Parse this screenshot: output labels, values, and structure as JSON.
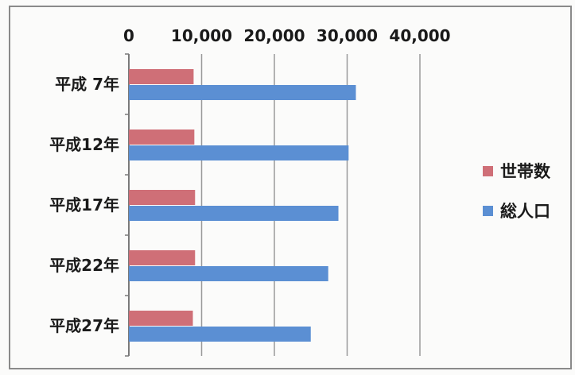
{
  "chart_data": {
    "type": "bar",
    "orientation": "horizontal",
    "categories": [
      "平成 7年",
      "平成12年",
      "平成17年",
      "平成22年",
      "平成27年"
    ],
    "series": [
      {
        "name": "世帯数",
        "values": [
          8900,
          9000,
          9100,
          9100,
          8800
        ],
        "color": "#cf6f77"
      },
      {
        "name": "総人口",
        "values": [
          31200,
          30200,
          28800,
          27400,
          25000
        ],
        "color": "#5b8fd3"
      }
    ],
    "x_ticks": [
      "0",
      "10,000",
      "20,000",
      "30,000",
      "40,000"
    ],
    "xlim": [
      0,
      40000
    ],
    "x_axis_position": "top",
    "grid": true,
    "legend": "right",
    "title": "",
    "xlabel": "",
    "ylabel": ""
  }
}
